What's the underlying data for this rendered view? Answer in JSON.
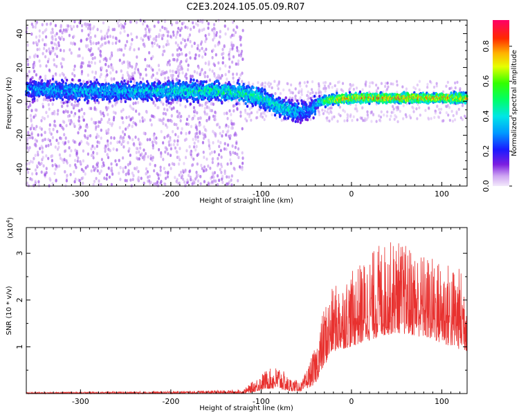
{
  "title": "C2E3.2024.105.05.09.R07",
  "chart_data": [
    {
      "type": "heatmap",
      "xlabel": "Height of straight line (km)",
      "ylabel": "Frequency (Hz)",
      "xlim": [
        -360,
        128
      ],
      "ylim": [
        -50,
        48
      ],
      "x_ticks": [
        -300,
        -200,
        -100,
        0,
        100
      ],
      "x_tick_labels": [
        "-300",
        "-200",
        "-100",
        "0",
        "100"
      ],
      "y_ticks": [
        -40,
        -20,
        0,
        20,
        40
      ],
      "y_tick_labels": [
        "-40",
        "-20",
        "0",
        "20",
        "40"
      ],
      "colorbar": {
        "label": "Normalized spectral amplitude",
        "range": [
          0,
          0.95
        ],
        "ticks": [
          0.0,
          0.2,
          0.4,
          0.6,
          0.8
        ],
        "tick_labels": [
          "0.0",
          "0.2",
          "0.4",
          "0.6",
          "0.8"
        ]
      },
      "ridge": [
        {
          "x": -360,
          "f": 7,
          "a": 0.35
        },
        {
          "x": -300,
          "f": 6,
          "a": 0.4
        },
        {
          "x": -250,
          "f": 6,
          "a": 0.4
        },
        {
          "x": -200,
          "f": 6,
          "a": 0.45
        },
        {
          "x": -150,
          "f": 6,
          "a": 0.5
        },
        {
          "x": -120,
          "f": 5,
          "a": 0.5
        },
        {
          "x": -100,
          "f": 2,
          "a": 0.5
        },
        {
          "x": -80,
          "f": -3,
          "a": 0.45
        },
        {
          "x": -60,
          "f": -6,
          "a": 0.4
        },
        {
          "x": -45,
          "f": -5,
          "a": 0.35
        },
        {
          "x": -35,
          "f": 0,
          "a": 0.5
        },
        {
          "x": -20,
          "f": 1,
          "a": 0.75
        },
        {
          "x": 0,
          "f": 2,
          "a": 0.8
        },
        {
          "x": 50,
          "f": 2,
          "a": 0.85
        },
        {
          "x": 100,
          "f": 2,
          "a": 0.8
        },
        {
          "x": 128,
          "f": 2,
          "a": 0.8
        }
      ]
    },
    {
      "type": "line",
      "xlabel": "Height of straight line (km)",
      "ylabel": "SNR (10 * v/v)",
      "y_multiplier": "(x10",
      "y_multiplier_exp": "4",
      "y_multiplier_close": ")",
      "xlim": [
        -360,
        128
      ],
      "ylim": [
        0,
        3.55
      ],
      "x_ticks": [
        -300,
        -200,
        -100,
        0,
        100
      ],
      "x_tick_labels": [
        "-300",
        "-200",
        "-100",
        "0",
        "100"
      ],
      "y_ticks": [
        1,
        2,
        3
      ],
      "y_tick_labels": [
        "1",
        "2",
        "3"
      ],
      "color": "#e8312f",
      "envelope": [
        {
          "x": -360,
          "low": 0.0,
          "high": 0.03
        },
        {
          "x": -200,
          "low": 0.0,
          "high": 0.05
        },
        {
          "x": -120,
          "low": 0.0,
          "high": 0.08
        },
        {
          "x": -110,
          "low": 0.02,
          "high": 0.25
        },
        {
          "x": -95,
          "low": 0.1,
          "high": 0.5
        },
        {
          "x": -80,
          "low": 0.1,
          "high": 0.6
        },
        {
          "x": -70,
          "low": 0.05,
          "high": 0.35
        },
        {
          "x": -55,
          "low": 0.05,
          "high": 0.25
        },
        {
          "x": -40,
          "low": 0.2,
          "high": 1.0
        },
        {
          "x": -30,
          "low": 0.6,
          "high": 1.9
        },
        {
          "x": -20,
          "low": 0.9,
          "high": 2.3
        },
        {
          "x": 0,
          "low": 1.0,
          "high": 2.6
        },
        {
          "x": 30,
          "low": 1.2,
          "high": 3.2
        },
        {
          "x": 50,
          "low": 1.3,
          "high": 3.3
        },
        {
          "x": 80,
          "low": 1.2,
          "high": 3.0
        },
        {
          "x": 110,
          "low": 1.0,
          "high": 2.8
        },
        {
          "x": 128,
          "low": 0.9,
          "high": 2.6
        }
      ]
    }
  ]
}
